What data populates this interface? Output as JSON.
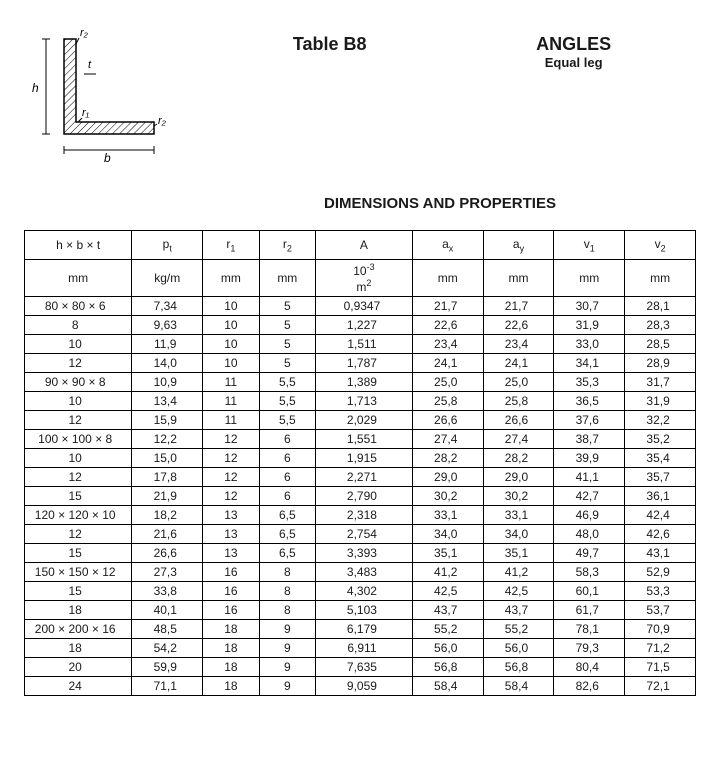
{
  "header": {
    "table_label": "Table B8",
    "angles_title": "ANGLES",
    "angles_sub": "Equal leg",
    "dim_props": "DIMENSIONS AND PROPERTIES"
  },
  "diagram": {
    "labels": {
      "h": "h",
      "b": "b",
      "t": "t",
      "r1": "r₁",
      "r2": "r₂",
      "r2b": "r₂"
    },
    "stroke": "#000000",
    "fill_hatch": "#000000",
    "bg": "#ffffff"
  },
  "columns": {
    "hxb": {
      "sym": "h × b × t",
      "unit": "mm"
    },
    "p": {
      "sym": "pₑ",
      "unit": "kg/m"
    },
    "r1": {
      "sym": "r₁",
      "unit": "mm"
    },
    "r2": {
      "sym": "r₂",
      "unit": "mm"
    },
    "A": {
      "sym": "A",
      "unit": "10⁻³ m²"
    },
    "ax": {
      "sym": "aₓ",
      "unit": "mm"
    },
    "ay": {
      "sym": "aᵧ",
      "unit": "mm"
    },
    "v1": {
      "sym": "v₁",
      "unit": "mm"
    },
    "v2": {
      "sym": "v₂",
      "unit": "mm"
    }
  },
  "groups": [
    {
      "section": "80 × 80",
      "rows": [
        {
          "t": "6",
          "p": "7,34",
          "r1": "10",
          "r2": "5",
          "A": "0,9347",
          "ax": "21,7",
          "ay": "21,7",
          "v1": "30,7",
          "v2": "28,1"
        },
        {
          "t": "8",
          "p": "9,63",
          "r1": "10",
          "r2": "5",
          "A": "1,227",
          "ax": "22,6",
          "ay": "22,6",
          "v1": "31,9",
          "v2": "28,3"
        },
        {
          "t": "10",
          "p": "11,9",
          "r1": "10",
          "r2": "5",
          "A": "1,511",
          "ax": "23,4",
          "ay": "23,4",
          "v1": "33,0",
          "v2": "28,5"
        },
        {
          "t": "12",
          "p": "14,0",
          "r1": "10",
          "r2": "5",
          "A": "1,787",
          "ax": "24,1",
          "ay": "24,1",
          "v1": "34,1",
          "v2": "28,9"
        }
      ]
    },
    {
      "section": "90 × 90",
      "rows": [
        {
          "t": "8",
          "p": "10,9",
          "r1": "11",
          "r2": "5,5",
          "A": "1,389",
          "ax": "25,0",
          "ay": "25,0",
          "v1": "35,3",
          "v2": "31,7"
        },
        {
          "t": "10",
          "p": "13,4",
          "r1": "11",
          "r2": "5,5",
          "A": "1,713",
          "ax": "25,8",
          "ay": "25,8",
          "v1": "36,5",
          "v2": "31,9"
        },
        {
          "t": "12",
          "p": "15,9",
          "r1": "11",
          "r2": "5,5",
          "A": "2,029",
          "ax": "26,6",
          "ay": "26,6",
          "v1": "37,6",
          "v2": "32,2"
        }
      ]
    },
    {
      "section": "100 × 100",
      "rows": [
        {
          "t": "8",
          "p": "12,2",
          "r1": "12",
          "r2": "6",
          "A": "1,551",
          "ax": "27,4",
          "ay": "27,4",
          "v1": "38,7",
          "v2": "35,2"
        },
        {
          "t": "10",
          "p": "15,0",
          "r1": "12",
          "r2": "6",
          "A": "1,915",
          "ax": "28,2",
          "ay": "28,2",
          "v1": "39,9",
          "v2": "35,4"
        },
        {
          "t": "12",
          "p": "17,8",
          "r1": "12",
          "r2": "6",
          "A": "2,271",
          "ax": "29,0",
          "ay": "29,0",
          "v1": "41,1",
          "v2": "35,7"
        },
        {
          "t": "15",
          "p": "21,9",
          "r1": "12",
          "r2": "6",
          "A": "2,790",
          "ax": "30,2",
          "ay": "30,2",
          "v1": "42,7",
          "v2": "36,1"
        }
      ]
    },
    {
      "section": "120 × 120",
      "rows": [
        {
          "t": "10",
          "p": "18,2",
          "r1": "13",
          "r2": "6,5",
          "A": "2,318",
          "ax": "33,1",
          "ay": "33,1",
          "v1": "46,9",
          "v2": "42,4"
        },
        {
          "t": "12",
          "p": "21,6",
          "r1": "13",
          "r2": "6,5",
          "A": "2,754",
          "ax": "34,0",
          "ay": "34,0",
          "v1": "48,0",
          "v2": "42,6"
        },
        {
          "t": "15",
          "p": "26,6",
          "r1": "13",
          "r2": "6,5",
          "A": "3,393",
          "ax": "35,1",
          "ay": "35,1",
          "v1": "49,7",
          "v2": "43,1"
        }
      ]
    },
    {
      "section": "150 × 150",
      "rows": [
        {
          "t": "12",
          "p": "27,3",
          "r1": "16",
          "r2": "8",
          "A": "3,483",
          "ax": "41,2",
          "ay": "41,2",
          "v1": "58,3",
          "v2": "52,9"
        },
        {
          "t": "15",
          "p": "33,8",
          "r1": "16",
          "r2": "8",
          "A": "4,302",
          "ax": "42,5",
          "ay": "42,5",
          "v1": "60,1",
          "v2": "53,3"
        },
        {
          "t": "18",
          "p": "40,1",
          "r1": "16",
          "r2": "8",
          "A": "5,103",
          "ax": "43,7",
          "ay": "43,7",
          "v1": "61,7",
          "v2": "53,7"
        }
      ]
    },
    {
      "section": "200 × 200",
      "rows": [
        {
          "t": "16",
          "p": "48,5",
          "r1": "18",
          "r2": "9",
          "A": "6,179",
          "ax": "55,2",
          "ay": "55,2",
          "v1": "78,1",
          "v2": "70,9"
        },
        {
          "t": "18",
          "p": "54,2",
          "r1": "18",
          "r2": "9",
          "A": "6,911",
          "ax": "56,0",
          "ay": "56,0",
          "v1": "79,3",
          "v2": "71,2"
        },
        {
          "t": "20",
          "p": "59,9",
          "r1": "18",
          "r2": "9",
          "A": "7,635",
          "ax": "56,8",
          "ay": "56,8",
          "v1": "80,4",
          "v2": "71,5"
        },
        {
          "t": "24",
          "p": "71,1",
          "r1": "18",
          "r2": "9",
          "A": "9,059",
          "ax": "58,4",
          "ay": "58,4",
          "v1": "82,6",
          "v2": "72,1"
        }
      ]
    }
  ]
}
